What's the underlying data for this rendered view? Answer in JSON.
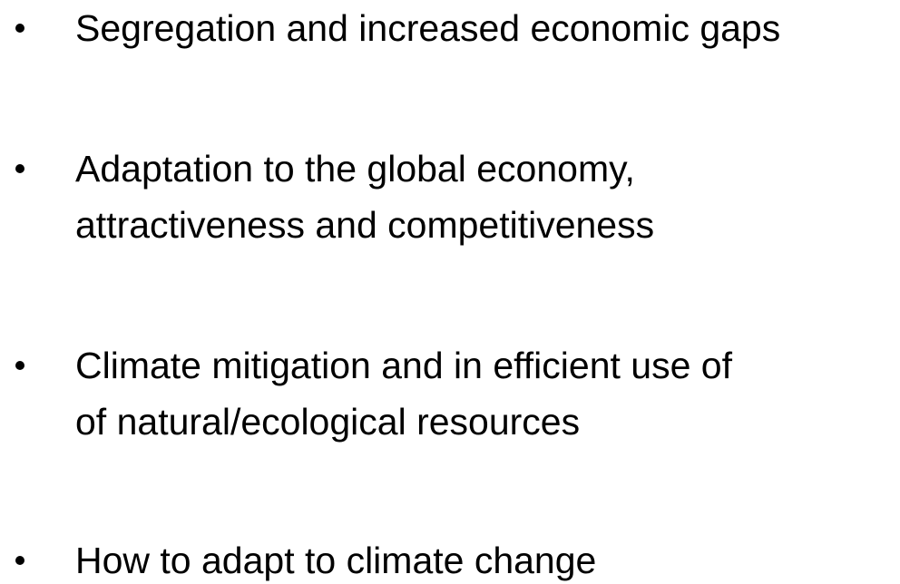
{
  "bullets": [
    {
      "lines": [
        "Segregation and increased economic gaps"
      ]
    },
    {
      "lines": [
        "Adaptation to the global economy,",
        "attractiveness and competitiveness"
      ]
    },
    {
      "lines": [
        "Climate mitigation and in efficient use of",
        "of natural/ecological resources"
      ]
    },
    {
      "lines": [
        "How to adapt to climate change"
      ]
    }
  ]
}
